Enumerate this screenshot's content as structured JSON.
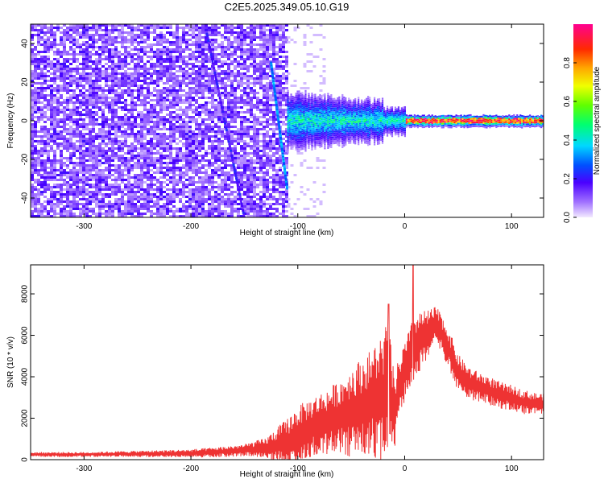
{
  "title": "C2E5.2025.349.05.10.G19",
  "spectrogram": {
    "type": "heatmap",
    "xlabel": "Height of straight line (km)",
    "ylabel": "Frequency (Hz)",
    "xlim": [
      -350,
      130
    ],
    "ylim": [
      -50,
      50
    ],
    "xticks": [
      -300,
      -200,
      -100,
      0,
      100
    ],
    "yticks": [
      -40,
      -20,
      0,
      20,
      40
    ],
    "colorbar_label": "Normalized spectral amplitude",
    "colorbar_ticks": [
      "0.0",
      "0.2",
      "0.4",
      "0.6",
      "0.8"
    ],
    "colorbar_range": [
      0,
      1
    ]
  },
  "chart_data": [
    {
      "type": "heatmap",
      "title": "C2E5.2025.349.05.10.G19",
      "xlabel": "Height of straight line (km)",
      "ylabel": "Frequency (Hz)",
      "xlim": [
        -350,
        130
      ],
      "ylim": [
        -50,
        50
      ],
      "features": [
        {
          "name": "dense noise field",
          "x_range": [
            -350,
            -110
          ],
          "freq_range": [
            -50,
            50
          ],
          "amplitude": 0.1
        },
        {
          "name": "diagonal streak 1",
          "from": [
            -185,
            45
          ],
          "to": [
            -150,
            -50
          ],
          "amplitude": 0.12
        },
        {
          "name": "diagonal streak 2",
          "from": [
            -125,
            30
          ],
          "to": [
            -110,
            -35
          ],
          "amplitude": 0.25
        },
        {
          "name": "carrier band",
          "x_range": [
            -110,
            130
          ],
          "freq": 0,
          "amplitude_peak": 1.0
        }
      ]
    },
    {
      "type": "line",
      "xlabel": "Height of straight line (km)",
      "ylabel": "SNR (10 * v/v)",
      "xlim": [
        -350,
        130
      ],
      "ylim": [
        0,
        9400
      ],
      "xticks": [
        -300,
        -200,
        -100,
        0,
        100
      ],
      "yticks": [
        0,
        2000,
        4000,
        6000,
        8000
      ],
      "color": "#ee3333",
      "envelope": {
        "x": [
          -350,
          -300,
          -250,
          -200,
          -170,
          -150,
          -130,
          -110,
          -100,
          -90,
          -80,
          -70,
          -60,
          -50,
          -40,
          -30,
          -20,
          -15,
          -10,
          -5,
          0,
          10,
          20,
          30,
          40,
          50,
          60,
          70,
          80,
          90,
          100,
          110,
          120,
          130
        ],
        "mean": [
          250,
          250,
          280,
          300,
          380,
          450,
          550,
          800,
          1200,
          1500,
          1700,
          1900,
          2100,
          2300,
          2500,
          2800,
          3000,
          3500,
          2000,
          3500,
          4200,
          5500,
          6000,
          6500,
          5500,
          4200,
          3700,
          3500,
          3300,
          3100,
          3000,
          2800,
          2700,
          2700
        ],
        "amplitude": [
          120,
          120,
          150,
          200,
          250,
          300,
          500,
          1200,
          1400,
          1400,
          1500,
          1600,
          1800,
          2200,
          2400,
          2600,
          3200,
          3500,
          2000,
          1500,
          1500,
          1600,
          1200,
          900,
          1000,
          900,
          800,
          700,
          700,
          650,
          600,
          600,
          550,
          500
        ]
      },
      "spikes": [
        {
          "x": 8,
          "y": 9400
        },
        {
          "x": -15,
          "y": 7500
        }
      ]
    }
  ],
  "snr": {
    "xlabel": "Height of straight line (km)",
    "ylabel": "SNR (10 * v/v)",
    "xticks": [
      -300,
      -200,
      -100,
      0,
      100
    ],
    "yticks": [
      0,
      2000,
      4000,
      6000,
      8000
    ],
    "xlim": [
      -350,
      130
    ],
    "ylim": [
      0,
      9400
    ]
  }
}
